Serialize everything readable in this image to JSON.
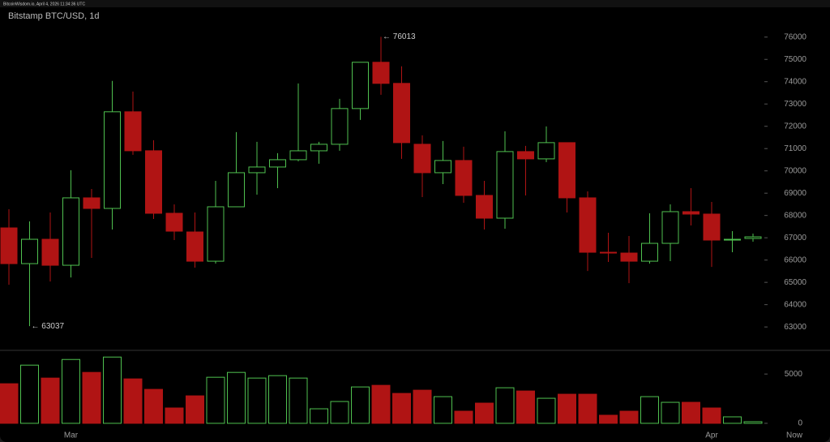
{
  "header": "BitcoinWisdom.io, April 4, 2026 11:34:36 UTC",
  "chart_data": [
    {
      "type": "candlestick",
      "title": "Bitstamp BTC/USD, 1d",
      "categories": [
        null,
        null,
        null,
        "Mar",
        null,
        null,
        null,
        null,
        null,
        null,
        null,
        null,
        null,
        null,
        null,
        null,
        null,
        null,
        null,
        null,
        null,
        null,
        null,
        null,
        null,
        null,
        null,
        null,
        null,
        null,
        null,
        null,
        null,
        null,
        "Apr",
        null,
        null
      ],
      "x_end_label": "Now",
      "open": [
        67442,
        65840,
        66932,
        65767,
        68790,
        68316,
        72650,
        70902,
        68098,
        67260,
        65949,
        68389,
        69918,
        70173,
        70501,
        70900,
        71193,
        72795,
        74871,
        73924,
        71193,
        69918,
        70465,
        68899,
        67879,
        70865,
        70538,
        71266,
        68790,
        66350,
        66314,
        65949,
        66750,
        68171,
        68062,
        66896,
        66969
      ],
      "high": [
        68280,
        67733,
        68134,
        70028,
        69190,
        74034,
        73560,
        71375,
        68498,
        68134,
        69554,
        71739,
        71302,
        70792,
        73924,
        71302,
        73232,
        74871,
        76013,
        74689,
        71594,
        71339,
        71084,
        69554,
        71776,
        71120,
        71994,
        71266,
        69081,
        67224,
        67078,
        68098,
        68498,
        69226,
        68607,
        67296,
        67187
      ],
      "low": [
        64893,
        63037,
        65039,
        65221,
        66095,
        67369,
        70720,
        67843,
        66896,
        65658,
        65840,
        68389,
        68935,
        69226,
        70428,
        70319,
        70902,
        72286,
        73414,
        70538,
        68826,
        69409,
        68571,
        67369,
        67406,
        68899,
        70392,
        68134,
        65512,
        65913,
        64966,
        65840,
        65949,
        67551,
        65694,
        66350,
        66823
      ],
      "close": [
        65840,
        66932,
        65767,
        68790,
        68316,
        72650,
        70902,
        68098,
        67296,
        65949,
        68389,
        69918,
        70173,
        70501,
        70900,
        71193,
        72795,
        74871,
        73924,
        71266,
        69918,
        70465,
        68899,
        67879,
        70865,
        70538,
        71266,
        68790,
        66350,
        66314,
        65949,
        66750,
        68171,
        68062,
        66896,
        66932,
        67042
      ],
      "up_color": "#4fc04f",
      "down_color": "#b01414",
      "ylim": [
        61950,
        77300
      ],
      "yticks": [
        63000,
        64000,
        65000,
        66000,
        67000,
        68000,
        69000,
        70000,
        71000,
        72000,
        73000,
        74000,
        75000,
        76000
      ],
      "annotations": [
        "← 76013",
        "← 63037"
      ]
    },
    {
      "type": "bar",
      "values": [
        4016,
        5902,
        4590,
        6475,
        5164,
        6721,
        4508,
        3443,
        1557,
        2787,
        4672,
        5164,
        4590,
        4836,
        4590,
        1475,
        2213,
        3689,
        3852,
        3033,
        3361,
        2705,
        1230,
        2049,
        3607,
        3279,
        2541,
        2951,
        2951,
        820,
        1230,
        2705,
        2131,
        2131,
        1557,
        656,
        164
      ],
      "ylim": [
        -250,
        7400
      ],
      "yticks": [
        0,
        5000
      ]
    }
  ]
}
